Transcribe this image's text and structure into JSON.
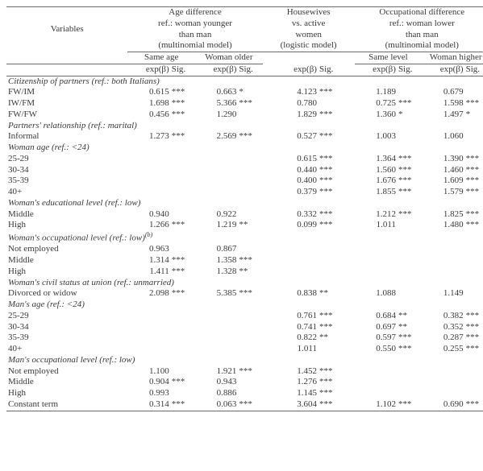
{
  "header": {
    "variables": "Variables",
    "age_diff": "Age difference",
    "age_ref": "ref.: woman younger",
    "age_ref2": "than man",
    "age_model": "(multinomial model)",
    "housewives1": "Housewives",
    "housewives2": "vs. active",
    "housewives3": "women",
    "housewives_model": "(logistic model)",
    "occ_diff": "Occupational difference",
    "occ_ref": "ref.: woman lower",
    "occ_ref2": "than man",
    "occ_model": "(multinomial model)",
    "same_age": "Same age",
    "woman_older": "Woman older",
    "same_level": "Same level",
    "woman_higher": "Woman higher",
    "expb": "exp(β)",
    "sig": "Sig."
  },
  "sections": [
    {
      "label": "Citizenship of partners (ref.: both Italians)",
      "rows": [
        {
          "l": "FW/IM",
          "c": [
            [
              "0.615",
              "***"
            ],
            [
              "0.663",
              "*"
            ],
            [
              "4.123",
              "***"
            ],
            [
              "1.189",
              ""
            ],
            [
              "0.679",
              ""
            ]
          ]
        },
        {
          "l": "IW/FM",
          "c": [
            [
              "1.698",
              "***"
            ],
            [
              "5.366",
              "***"
            ],
            [
              "0.780",
              ""
            ],
            [
              "0.725",
              "***"
            ],
            [
              "1.598",
              "***"
            ]
          ]
        },
        {
          "l": "FW/FW",
          "c": [
            [
              "0.456",
              "***"
            ],
            [
              "1.290",
              ""
            ],
            [
              "1.829",
              "***"
            ],
            [
              "1.360",
              "*"
            ],
            [
              "1.497",
              "*"
            ]
          ]
        }
      ]
    },
    {
      "label": "Partners' relationship (ref.: marital)",
      "rows": [
        {
          "l": "Informal",
          "c": [
            [
              "1.273",
              "***"
            ],
            [
              "2.569",
              "***"
            ],
            [
              "0.527",
              "***"
            ],
            [
              "1.003",
              ""
            ],
            [
              "1.060",
              ""
            ]
          ]
        }
      ]
    },
    {
      "label": "Woman age (ref.: <24)",
      "rows": [
        {
          "l": "25-29",
          "c": [
            [
              "",
              ""
            ],
            [
              "",
              ""
            ],
            [
              "0.615",
              "***"
            ],
            [
              "1.364",
              "***"
            ],
            [
              "1.390",
              "***"
            ]
          ]
        },
        {
          "l": "30-34",
          "c": [
            [
              "",
              ""
            ],
            [
              "",
              ""
            ],
            [
              "0.440",
              "***"
            ],
            [
              "1.560",
              "***"
            ],
            [
              "1.460",
              "***"
            ]
          ]
        },
        {
          "l": "35-39",
          "c": [
            [
              "",
              ""
            ],
            [
              "",
              ""
            ],
            [
              "0.400",
              "***"
            ],
            [
              "1.676",
              "***"
            ],
            [
              "1.609",
              "***"
            ]
          ]
        },
        {
          "l": "40+",
          "c": [
            [
              "",
              ""
            ],
            [
              "",
              ""
            ],
            [
              "0.379",
              "***"
            ],
            [
              "1.855",
              "***"
            ],
            [
              "1.579",
              "***"
            ]
          ]
        }
      ]
    },
    {
      "label": "Woman's educational level (ref.: low)",
      "rows": [
        {
          "l": "Middle",
          "c": [
            [
              "0.940",
              ""
            ],
            [
              "0.922",
              ""
            ],
            [
              "0.332",
              "***"
            ],
            [
              "1.212",
              "***"
            ],
            [
              "1.825",
              "***"
            ]
          ]
        },
        {
          "l": "High",
          "c": [
            [
              "1.266",
              "***"
            ],
            [
              "1.219",
              "**"
            ],
            [
              "0.099",
              "***"
            ],
            [
              "1.011",
              ""
            ],
            [
              "1.480",
              "***"
            ]
          ]
        }
      ]
    },
    {
      "label": "Woman's occupational level (ref.: low)",
      "sup": "(b)",
      "rows": [
        {
          "l": "Not employed",
          "c": [
            [
              "0.963",
              ""
            ],
            [
              "0.867",
              ""
            ],
            [
              "",
              ""
            ],
            [
              "",
              ""
            ],
            [
              "",
              ""
            ]
          ]
        },
        {
          "l": "Middle",
          "c": [
            [
              "1.314",
              "***"
            ],
            [
              "1.358",
              "***"
            ],
            [
              "",
              ""
            ],
            [
              "",
              ""
            ],
            [
              "",
              ""
            ]
          ]
        },
        {
          "l": "High",
          "c": [
            [
              "1.411",
              "***"
            ],
            [
              "1.328",
              "**"
            ],
            [
              "",
              ""
            ],
            [
              "",
              ""
            ],
            [
              "",
              ""
            ]
          ]
        }
      ]
    },
    {
      "label": "Woman's civil status at union (ref.: unmarried)",
      "rows": [
        {
          "l": "Divorced or widow",
          "c": [
            [
              "2.098",
              "***"
            ],
            [
              "5.385",
              "***"
            ],
            [
              "0.838",
              "**"
            ],
            [
              "1.088",
              ""
            ],
            [
              "1.149",
              ""
            ]
          ]
        }
      ]
    },
    {
      "label": "Man's age (ref.: <24)",
      "rows": [
        {
          "l": "25-29",
          "c": [
            [
              "",
              ""
            ],
            [
              "",
              ""
            ],
            [
              "0.761",
              "***"
            ],
            [
              "0.684",
              "**"
            ],
            [
              "0.382",
              "***"
            ]
          ]
        },
        {
          "l": "30-34",
          "c": [
            [
              "",
              ""
            ],
            [
              "",
              ""
            ],
            [
              "0.741",
              "***"
            ],
            [
              "0.697",
              "**"
            ],
            [
              "0.352",
              "***"
            ]
          ]
        },
        {
          "l": "35-39",
          "c": [
            [
              "",
              ""
            ],
            [
              "",
              ""
            ],
            [
              "0.822",
              "**"
            ],
            [
              "0.597",
              "***"
            ],
            [
              "0.287",
              "***"
            ]
          ]
        },
        {
          "l": "40+",
          "c": [
            [
              "",
              ""
            ],
            [
              "",
              ""
            ],
            [
              "1.011",
              ""
            ],
            [
              "0.550",
              "***"
            ],
            [
              "0.255",
              "***"
            ]
          ]
        }
      ]
    },
    {
      "label": "Man's occupational level (ref.: low)",
      "rows": [
        {
          "l": "Not employed",
          "c": [
            [
              "1.100",
              ""
            ],
            [
              "1.921",
              "***"
            ],
            [
              "1.452",
              "***"
            ],
            [
              "",
              ""
            ],
            [
              "",
              ""
            ]
          ]
        },
        {
          "l": "Middle",
          "c": [
            [
              "0.904",
              "***"
            ],
            [
              "0.943",
              ""
            ],
            [
              "1.276",
              "***"
            ],
            [
              "",
              ""
            ],
            [
              "",
              ""
            ]
          ]
        },
        {
          "l": "High",
          "c": [
            [
              "0.993",
              ""
            ],
            [
              "0.886",
              ""
            ],
            [
              "1.145",
              "***"
            ],
            [
              "",
              ""
            ],
            [
              "",
              ""
            ]
          ]
        },
        {
          "l": "Constant term",
          "c": [
            [
              "0.314",
              "***"
            ],
            [
              "0.063",
              "***"
            ],
            [
              "3.604",
              "***"
            ],
            [
              "1.102",
              "***"
            ],
            [
              "0.690",
              "***"
            ]
          ]
        }
      ]
    }
  ]
}
